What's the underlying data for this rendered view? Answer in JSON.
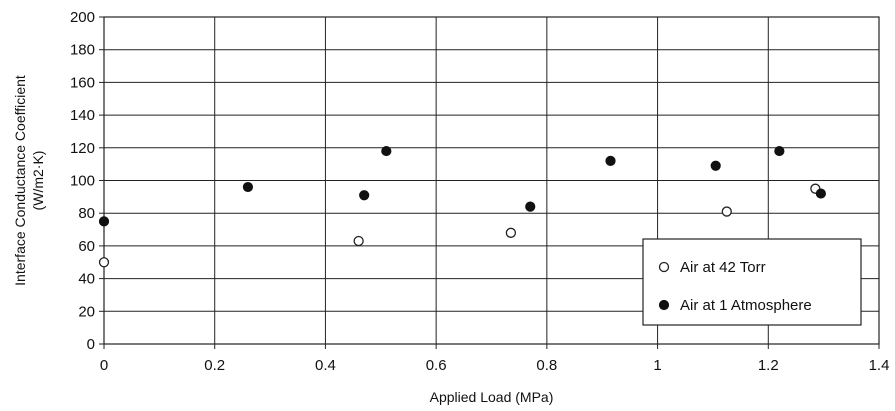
{
  "chart_data": {
    "type": "scatter",
    "xlabel": "Applied Load (MPa)",
    "ylabel_lines": [
      "Interface Conductance Coefficient",
      "(W/m2·K)"
    ],
    "xlim": [
      0,
      1.4
    ],
    "ylim": [
      0,
      200
    ],
    "x_ticks": [
      "0",
      "0.2",
      "0.4",
      "0.6",
      "0.8",
      "1",
      "1.2",
      "1.4"
    ],
    "y_ticks": [
      "0",
      "20",
      "40",
      "60",
      "80",
      "100",
      "120",
      "140",
      "160",
      "180",
      "200"
    ],
    "grid": true,
    "legend_position": "bottom-right",
    "series": [
      {
        "name": "Air at 42 Torr",
        "marker": "open-circle",
        "points": [
          {
            "x": 0.0,
            "y": 50
          },
          {
            "x": 0.46,
            "y": 63
          },
          {
            "x": 0.735,
            "y": 68
          },
          {
            "x": 1.125,
            "y": 81
          },
          {
            "x": 1.285,
            "y": 95
          }
        ]
      },
      {
        "name": "Air at 1 Atmosphere",
        "marker": "filled-circle",
        "points": [
          {
            "x": 0.0,
            "y": 75
          },
          {
            "x": 0.26,
            "y": 96
          },
          {
            "x": 0.47,
            "y": 91
          },
          {
            "x": 0.51,
            "y": 118
          },
          {
            "x": 0.77,
            "y": 84
          },
          {
            "x": 0.915,
            "y": 112
          },
          {
            "x": 1.105,
            "y": 109
          },
          {
            "x": 1.22,
            "y": 118
          },
          {
            "x": 1.295,
            "y": 92
          }
        ]
      }
    ]
  }
}
